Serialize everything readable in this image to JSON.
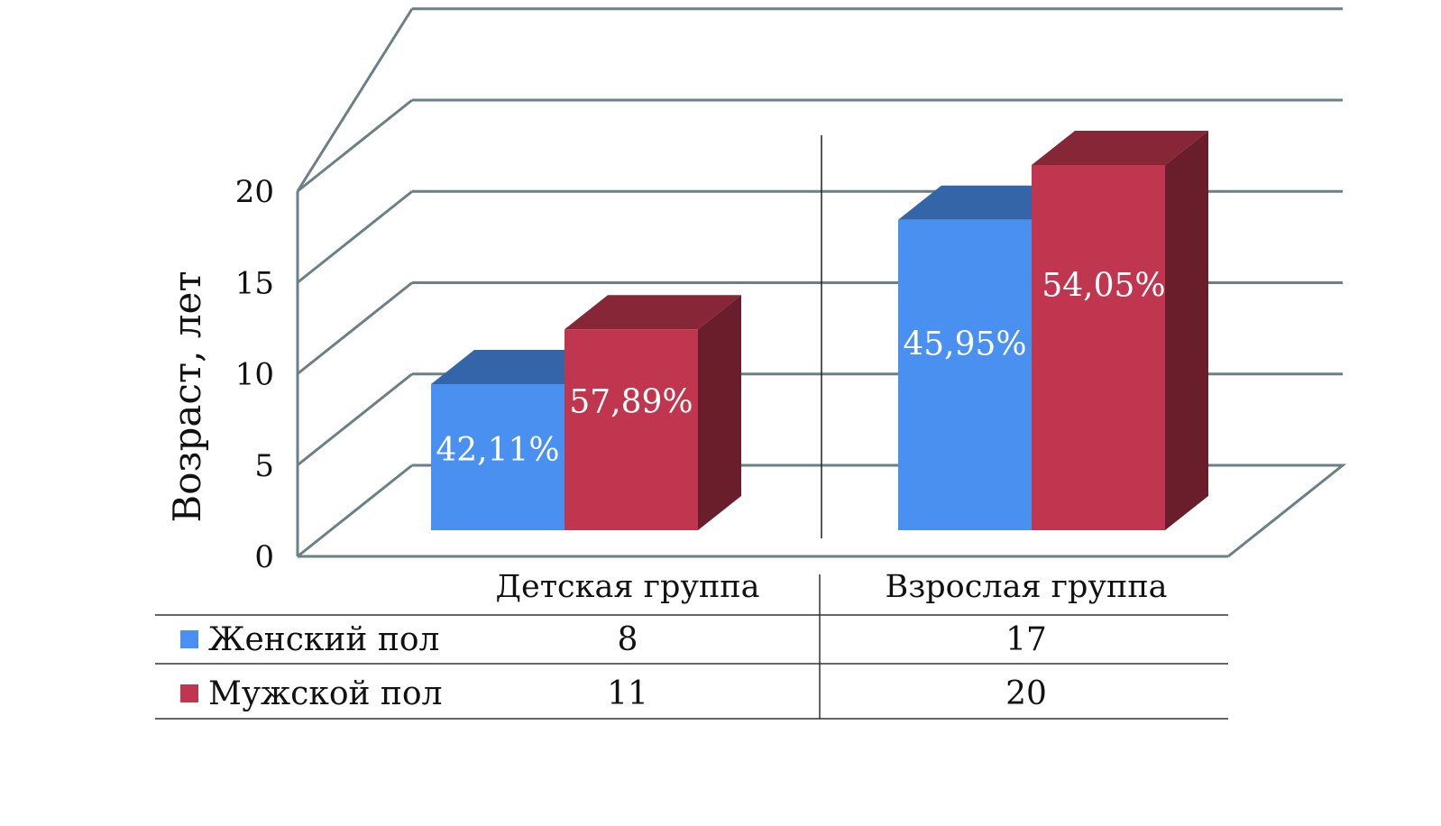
{
  "chart_data": {
    "type": "bar",
    "categories": [
      "Детская группа",
      "Взрослая группа"
    ],
    "series": [
      {
        "name": "Женский пол",
        "values": [
          8,
          17
        ],
        "labels": [
          "42,11%",
          "45,95%"
        ],
        "color": "#4a90f0"
      },
      {
        "name": "Мужской пол",
        "values": [
          11,
          20
        ],
        "labels": [
          "57,89%",
          "54,05%"
        ],
        "color": "#c0364f"
      }
    ],
    "ylabel": "Возраст, лет",
    "ylim": [
      0,
      20
    ],
    "yticks": [
      "0",
      "5",
      "10",
      "15",
      "20"
    ],
    "grid": true,
    "data_table": true,
    "style": "3d-clustered-column"
  }
}
